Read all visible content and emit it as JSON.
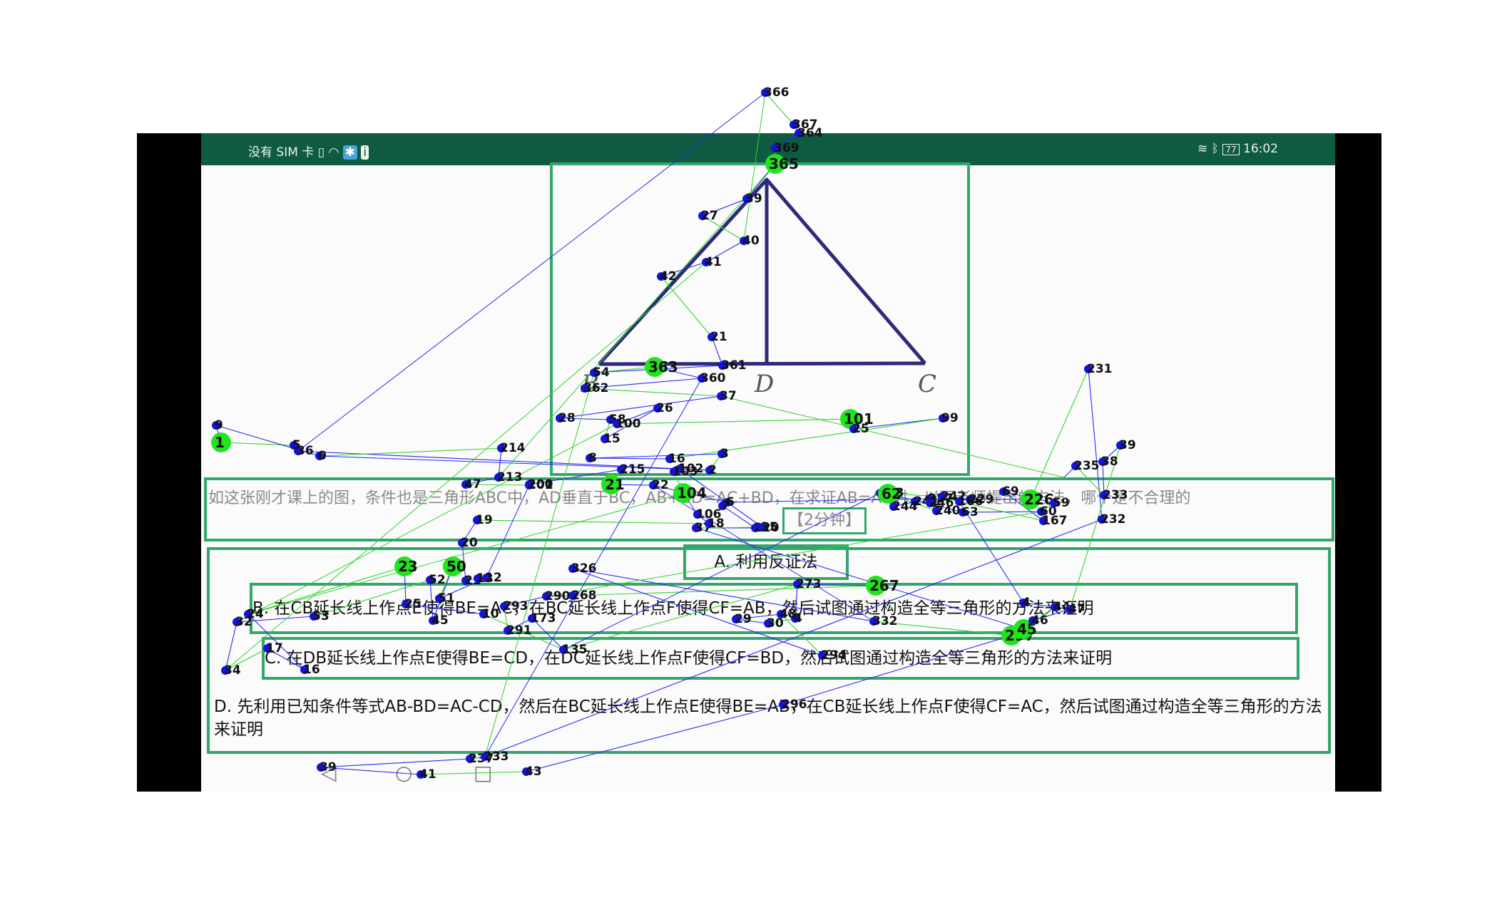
{
  "status_bar": {
    "carrier": "没有 SIM 卡",
    "time": "16:02",
    "battery": "77"
  },
  "figure": {
    "vertex_b": "B",
    "vertex_d": "D",
    "vertex_c": "C"
  },
  "question": {
    "text": "如这张刚才课上的图，条件也是三角形ABC中，AD垂直于BC，AB+BD=AC+BD，在求证AB=AC时，以下老师提出的方法，哪个是不合理的",
    "timer": "【2分钟】"
  },
  "options": {
    "a": "A. 利用反证法",
    "b": "B. 在CB延长线上作点E使得BE=AC，在BC延长线上作点F使得CF=AB，然后试图通过构造全等三角形的方法来证明",
    "c": "C. 在DB延长线上作点E使得BE=CD，在DC延长线上作点F使得CF=BD，然后试图通过构造全等三角形的方法来证明",
    "d": "D. 先利用已知条件等式AB-BD=AC-CD，然后在BC延长线上作点E使得BE=AB，在CB延长线上作点F使得CF=AC，然后试图通过构造全等三角形的方法来证明"
  },
  "navigation": {
    "back": "◁",
    "home": "○",
    "recents": "□"
  },
  "overlay_labels": [
    "366",
    "367",
    "364",
    "369",
    "365",
    "39",
    "27",
    "40",
    "41",
    "42",
    "21",
    "361",
    "54",
    "363",
    "360",
    "362",
    "37",
    "28",
    "58",
    "15",
    "26",
    "100",
    "101",
    "25",
    "99",
    "16",
    "8",
    "3",
    "2",
    "36",
    "5",
    "1",
    "9",
    "0",
    "214",
    "213",
    "47",
    "201",
    "200",
    "215",
    "21",
    "22",
    "6",
    "7",
    "220",
    "37",
    "35",
    "102",
    "103",
    "104",
    "106",
    "18",
    "19",
    "20",
    "21",
    "13",
    "12",
    "51",
    "50",
    "45",
    "52",
    "53",
    "32",
    "34",
    "17",
    "16",
    "24",
    "23",
    "25",
    "10",
    "135",
    "173",
    "291",
    "293",
    "290",
    "268",
    "267",
    "273",
    "4",
    "30",
    "29",
    "48",
    "294",
    "326",
    "332",
    "297",
    "296",
    "43",
    "41",
    "39",
    "237",
    "233",
    "232",
    "231",
    "226",
    "227",
    "229",
    "241",
    "244",
    "243",
    "242",
    "246",
    "240",
    "62",
    "63",
    "60",
    "59",
    "69",
    "167",
    "166",
    "4",
    "44",
    "45",
    "46",
    "47",
    "39",
    "38",
    "233",
    "235"
  ],
  "colors": {
    "status_bar": "#0f5a43",
    "frame": "#35a66b",
    "triangle": "#2e2a7a",
    "overlay_node_blue": "#1414d8",
    "overlay_node_green": "#22e41c",
    "overlay_line_blue": "#2a2aee",
    "overlay_line_green": "#31d42c"
  },
  "icons": {
    "status_left": [
      "sim-icon",
      "wifi-icon",
      "bluetooth-sync-icon",
      "notification-icon"
    ],
    "status_right": [
      "vibrate-icon",
      "bluetooth-icon",
      "battery-icon"
    ]
  }
}
